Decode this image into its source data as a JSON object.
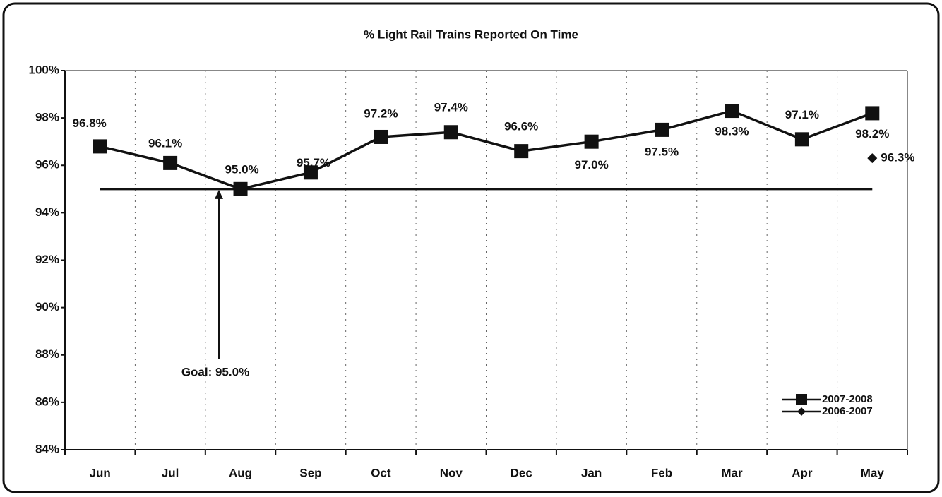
{
  "chart_data": {
    "type": "line",
    "title": "% Light Rail Trains Reported On Time",
    "categories": [
      "Jun",
      "Jul",
      "Aug",
      "Sep",
      "Oct",
      "Nov",
      "Dec",
      "Jan",
      "Feb",
      "Mar",
      "Apr",
      "May"
    ],
    "series": [
      {
        "name": "2007-2008",
        "color": "#111111",
        "marker": "square",
        "values": [
          96.8,
          96.1,
          95.0,
          95.7,
          97.2,
          97.4,
          96.6,
          97.0,
          97.5,
          98.3,
          97.1,
          98.2
        ],
        "value_labels": [
          "96.8%",
          "96.1%",
          "95.0%",
          "95.7%",
          "97.2%",
          "97.4%",
          "96.6%",
          "97.0%",
          "97.5%",
          "98.3%",
          "97.1%",
          "98.2%"
        ]
      },
      {
        "name": "2006-2007",
        "color": "#111111",
        "marker": "diamond",
        "values": [
          null,
          null,
          null,
          null,
          null,
          null,
          null,
          null,
          null,
          null,
          null,
          96.3
        ],
        "value_labels": [
          null,
          null,
          null,
          null,
          null,
          null,
          null,
          null,
          null,
          null,
          null,
          "96.3%"
        ]
      }
    ],
    "goal": {
      "value": 95.0,
      "label": "Goal:  95.0%"
    },
    "ylim": [
      84,
      100
    ],
    "yticks": [
      {
        "value": 84,
        "label": "84%"
      },
      {
        "value": 86,
        "label": "86%"
      },
      {
        "value": 88,
        "label": "88%"
      },
      {
        "value": 90,
        "label": "90%"
      },
      {
        "value": 92,
        "label": "92%"
      },
      {
        "value": 94,
        "label": "94%"
      },
      {
        "value": 96,
        "label": "96%"
      },
      {
        "value": 98,
        "label": "98%"
      },
      {
        "value": 100,
        "label": "100%"
      }
    ],
    "grid": true,
    "legend": "lower right"
  }
}
